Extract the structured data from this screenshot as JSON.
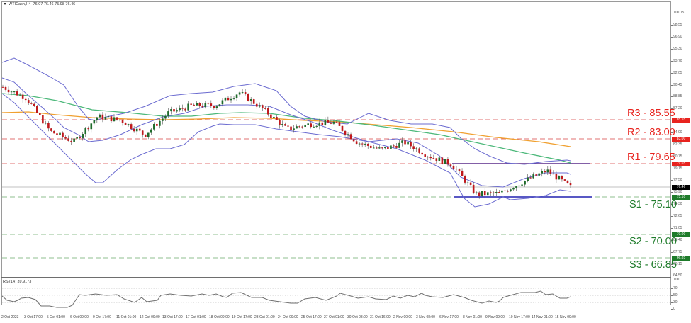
{
  "header": {
    "symbol_label": "WTICash,H4",
    "ohlc": "76.07 76.46 75.98 76.46"
  },
  "rsi": {
    "label": "RSI(14) 39.9173"
  },
  "price_axis": {
    "ticks": [
      "100.15",
      "98.55",
      "96.90",
      "95.30",
      "93.70",
      "92.05",
      "90.45",
      "88.85",
      "87.20",
      "84.00",
      "82.35",
      "80.75",
      "79.15",
      "77.50",
      "75.90",
      "74.30",
      "72.65",
      "71.05",
      "69.40",
      "67.75",
      "66.15",
      "64.50"
    ],
    "markers": [
      {
        "value": "85.55",
        "color": "#e8231e"
      },
      {
        "value": "83.00",
        "color": "#e8231e"
      },
      {
        "value": "79.65",
        "color": "#e8231e"
      },
      {
        "value": "76.46",
        "color": "#000000"
      },
      {
        "value": "75.10",
        "color": "#1e7b2a"
      },
      {
        "value": "70.00",
        "color": "#1e7b2a"
      },
      {
        "value": "66.85",
        "color": "#1e7b2a"
      }
    ]
  },
  "rsi_axis": {
    "ticks": [
      "100",
      "70",
      "50",
      "30",
      "0"
    ]
  },
  "levels": [
    {
      "label": "R3 - 85.55",
      "value": 85.55,
      "color": "#e8231e",
      "type": "resistance"
    },
    {
      "label": "R2 - 83.00",
      "value": 83.0,
      "color": "#e8231e",
      "type": "resistance"
    },
    {
      "label": "R1 - 79.65",
      "value": 79.65,
      "color": "#e8231e",
      "type": "resistance"
    },
    {
      "label": "S1 - 75.10",
      "value": 75.1,
      "color": "#1e7b2a",
      "type": "support"
    },
    {
      "label": "S2 - 70.00",
      "value": 70.0,
      "color": "#1e7b2a",
      "type": "support"
    },
    {
      "label": "S3 - 66.85",
      "value": 66.85,
      "color": "#1e7b2a",
      "type": "support"
    }
  ],
  "x_axis": {
    "labels": [
      "2 Oct 2023",
      "3 Oct 17:00",
      "5 Oct 01:00",
      "6 Oct 09:00",
      "9 Oct 17:00",
      "11 Oct 01:00",
      "12 Oct 09:00",
      "13 Oct 17:00",
      "17 Oct 01:00",
      "18 Oct 09:00",
      "19 Oct 17:00",
      "23 Oct 01:00",
      "24 Oct 09:00",
      "25 Oct 17:00",
      "27 Oct 01:00",
      "30 Oct 08:00",
      "31 Oct 16:00",
      "2 Nov 00:00",
      "3 Nov 08:00",
      "6 Nov 17:00",
      "8 Nov 01:00",
      "9 Nov 09:00",
      "10 Nov 17:00",
      "14 Nov 01:00",
      "15 Nov 09:00"
    ]
  },
  "colors": {
    "bull_candle": "#1f6b2b",
    "bear_candle": "#c0181c",
    "bollinger": "#6b6bd0",
    "ma_fast": "#4cb87a",
    "ma_slow": "#f0a030",
    "resistance_line": "#e07070",
    "support_line": "#8fbf8f",
    "range_line": "#2020b0",
    "current_price_line": "#c0c0c0"
  },
  "chart_data": {
    "type": "candlestick",
    "title": "WTICash,H4",
    "ohlc_last": {
      "open": 76.07,
      "high": 76.46,
      "low": 75.98,
      "close": 76.46
    },
    "ylim": [
      64.5,
      101.0
    ],
    "x_labels": [
      "2 Oct 2023",
      "3 Oct 17:00",
      "5 Oct 01:00",
      "6 Oct 09:00",
      "9 Oct 17:00",
      "11 Oct 01:00",
      "12 Oct 09:00",
      "13 Oct 17:00",
      "17 Oct 01:00",
      "18 Oct 09:00",
      "19 Oct 17:00",
      "23 Oct 01:00",
      "24 Oct 09:00",
      "25 Oct 17:00",
      "27 Oct 01:00",
      "30 Oct 08:00",
      "31 Oct 16:00",
      "2 Nov 00:00",
      "3 Nov 08:00",
      "6 Nov 17:00",
      "8 Nov 01:00",
      "9 Nov 09:00",
      "10 Nov 17:00",
      "14 Nov 01:00",
      "15 Nov 09:00"
    ],
    "approx_close_path": [
      {
        "x": "2 Oct 2023",
        "y": 90.0
      },
      {
        "x": "3 Oct 17:00",
        "y": 88.5
      },
      {
        "x": "5 Oct 01:00",
        "y": 84.0
      },
      {
        "x": "6 Oct 09:00",
        "y": 82.6
      },
      {
        "x": "9 Oct 17:00",
        "y": 86.0
      },
      {
        "x": "11 Oct 01:00",
        "y": 85.5
      },
      {
        "x": "12 Oct 09:00",
        "y": 83.5
      },
      {
        "x": "13 Oct 17:00",
        "y": 86.5
      },
      {
        "x": "17 Oct 01:00",
        "y": 87.5
      },
      {
        "x": "18 Oct 09:00",
        "y": 87.5
      },
      {
        "x": "19 Oct 17:00",
        "y": 89.3
      },
      {
        "x": "23 Oct 01:00",
        "y": 87.0
      },
      {
        "x": "24 Oct 09:00",
        "y": 84.3
      },
      {
        "x": "25 Oct 17:00",
        "y": 85.0
      },
      {
        "x": "27 Oct 01:00",
        "y": 85.2
      },
      {
        "x": "30 Oct 08:00",
        "y": 82.5
      },
      {
        "x": "31 Oct 16:00",
        "y": 81.5
      },
      {
        "x": "2 Nov 00:00",
        "y": 82.5
      },
      {
        "x": "3 Nov 08:00",
        "y": 80.7
      },
      {
        "x": "6 Nov 17:00",
        "y": 79.5
      },
      {
        "x": "8 Nov 01:00",
        "y": 75.5
      },
      {
        "x": "9 Nov 09:00",
        "y": 75.6
      },
      {
        "x": "10 Nov 17:00",
        "y": 77.2
      },
      {
        "x": "14 Nov 01:00",
        "y": 78.7
      },
      {
        "x": "15 Nov 09:00",
        "y": 76.46
      }
    ],
    "horizontal_levels": [
      {
        "name": "R3",
        "value": 85.55
      },
      {
        "name": "R2",
        "value": 83.0
      },
      {
        "name": "R1",
        "value": 79.65
      },
      {
        "name": "S1",
        "value": 75.1
      },
      {
        "name": "S2",
        "value": 70.0
      },
      {
        "name": "S3",
        "value": 66.85
      }
    ],
    "indicators": [
      "Bollinger Bands",
      "Moving Average (fast, green)",
      "Moving Average (slow, orange)",
      "RSI(14)"
    ],
    "rsi": {
      "label": "RSI(14)",
      "last": 39.9173,
      "levels": [
        70,
        50,
        30
      ],
      "ylim": [
        0,
        100
      ]
    },
    "grid": false
  }
}
